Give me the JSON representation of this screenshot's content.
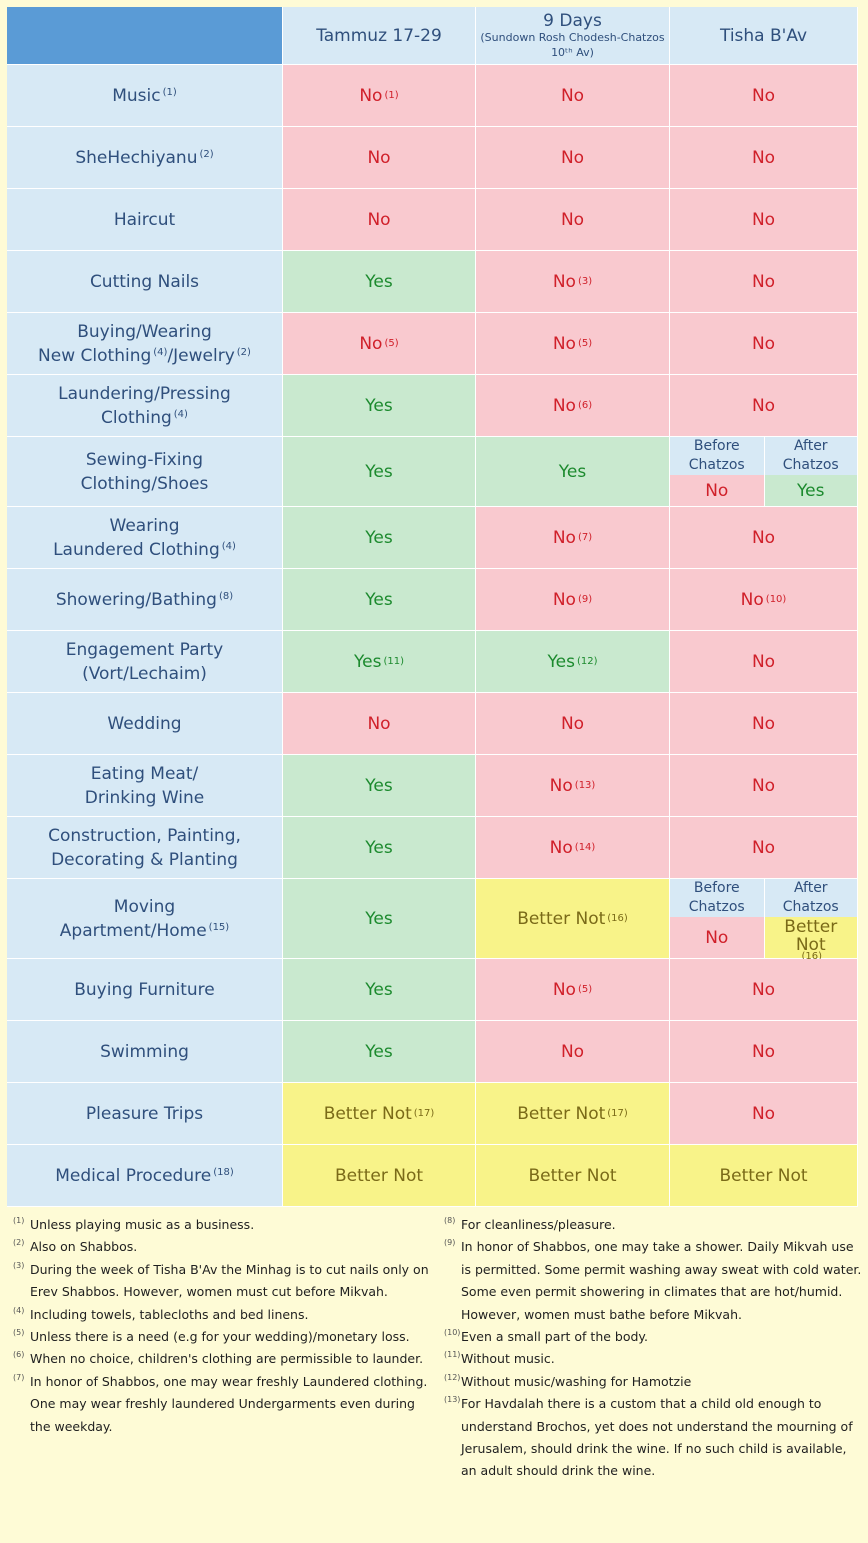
{
  "headers": [
    {
      "main": "Tammuz 17-29",
      "sub": ""
    },
    {
      "main": "9 Days",
      "sub": "(Sundown Rosh Chodesh-Chatzos 10ᵗʰ Av)"
    },
    {
      "main": "Tisha B'Av",
      "sub": ""
    }
  ],
  "rows": [
    {
      "label": "Music",
      "label_sup": "(1)",
      "cells": [
        {
          "text": "No",
          "sup": "(1)",
          "color": "red"
        },
        {
          "text": "No",
          "color": "red"
        },
        {
          "text": "No",
          "color": "red"
        }
      ]
    },
    {
      "label": "SheHechiyanu",
      "label_sup": "(2)",
      "cells": [
        {
          "text": "No",
          "color": "red"
        },
        {
          "text": "No",
          "color": "red"
        },
        {
          "text": "No",
          "color": "red"
        }
      ]
    },
    {
      "label": "Haircut",
      "cells": [
        {
          "text": "No",
          "color": "red"
        },
        {
          "text": "No",
          "color": "red"
        },
        {
          "text": "No",
          "color": "red"
        }
      ]
    },
    {
      "label": "Cutting Nails",
      "cells": [
        {
          "text": "Yes",
          "color": "green"
        },
        {
          "text": "No",
          "sup": "(3)",
          "color": "red"
        },
        {
          "text": "No",
          "color": "red"
        }
      ]
    },
    {
      "label": "Buying/Wearing",
      "label2": "New Clothing",
      "label2_sup": "(4)",
      "label2_tail": "/Jewelry",
      "label2_sup2": "(2)",
      "cells": [
        {
          "text": "No",
          "sup": "(5)",
          "color": "red"
        },
        {
          "text": "No",
          "sup": "(5)",
          "color": "red"
        },
        {
          "text": "No",
          "color": "red"
        }
      ]
    },
    {
      "label": "Laundering/Pressing",
      "label2": "Clothing",
      "label2_sup": "(4)",
      "cells": [
        {
          "text": "Yes",
          "color": "green"
        },
        {
          "text": "No",
          "sup": "(6)",
          "color": "red"
        },
        {
          "text": "No",
          "color": "red"
        }
      ]
    },
    {
      "label": "Sewing-Fixing",
      "label2": "Clothing/Shoes",
      "cells": [
        {
          "text": "Yes",
          "color": "green"
        },
        {
          "text": "Yes",
          "color": "green"
        },
        {
          "split": true,
          "before_label": "Before Chatzos",
          "after_label": "After Chatzos",
          "before": {
            "text": "No",
            "color": "red"
          },
          "after": {
            "text": "Yes",
            "color": "green"
          }
        }
      ]
    },
    {
      "label": "Wearing",
      "label2": "Laundered Clothing",
      "label2_sup": "(4)",
      "cells": [
        {
          "text": "Yes",
          "color": "green"
        },
        {
          "text": "No",
          "sup": "(7)",
          "color": "red"
        },
        {
          "text": "No",
          "color": "red"
        }
      ]
    },
    {
      "label": "Showering/Bathing",
      "label_sup": "(8)",
      "cells": [
        {
          "text": "Yes",
          "color": "green"
        },
        {
          "text": "No",
          "sup": "(9)",
          "color": "red"
        },
        {
          "text": "No",
          "sup": "(10)",
          "color": "red"
        }
      ]
    },
    {
      "label": "Engagement Party",
      "label2": "(Vort/Lechaim)",
      "cells": [
        {
          "text": "Yes",
          "sup": "(11)",
          "color": "green"
        },
        {
          "text": "Yes",
          "sup": "(12)",
          "color": "green"
        },
        {
          "text": "No",
          "color": "red"
        }
      ]
    },
    {
      "label": "Wedding",
      "cells": [
        {
          "text": "No",
          "color": "red"
        },
        {
          "text": "No",
          "color": "red"
        },
        {
          "text": "No",
          "color": "red"
        }
      ]
    },
    {
      "label": "Eating Meat/",
      "label2": "Drinking Wine",
      "cells": [
        {
          "text": "Yes",
          "color": "green"
        },
        {
          "text": "No",
          "sup": "(13)",
          "color": "red"
        },
        {
          "text": "No",
          "color": "red"
        }
      ]
    },
    {
      "label": "Construction, Painting,",
      "label2": "Decorating & Planting",
      "cells": [
        {
          "text": "Yes",
          "color": "green"
        },
        {
          "text": "No",
          "sup": "(14)",
          "color": "red"
        },
        {
          "text": "No",
          "color": "red"
        }
      ]
    },
    {
      "label": "Moving",
      "label2": "Apartment/Home",
      "label2_sup": "(15)",
      "cells": [
        {
          "text": "Yes",
          "color": "green"
        },
        {
          "text": "Better Not",
          "sup": "(16)",
          "color": "yellow"
        },
        {
          "split": true,
          "before_label": "Before Chatzos",
          "after_label": "After Chatzos",
          "before": {
            "text": "No",
            "color": "red"
          },
          "after": {
            "text": "Better Not",
            "sup": "(16)",
            "color": "yellow"
          }
        }
      ]
    },
    {
      "label": "Buying Furniture",
      "cells": [
        {
          "text": "Yes",
          "color": "green"
        },
        {
          "text": "No",
          "sup": "(5)",
          "color": "red"
        },
        {
          "text": "No",
          "color": "red"
        }
      ]
    },
    {
      "label": "Swimming",
      "cells": [
        {
          "text": "Yes",
          "color": "green"
        },
        {
          "text": "No",
          "color": "red"
        },
        {
          "text": "No",
          "color": "red"
        }
      ]
    },
    {
      "label": "Pleasure Trips",
      "cells": [
        {
          "text": "Better Not",
          "sup": "(17)",
          "color": "yellow"
        },
        {
          "text": "Better Not",
          "sup": "(17)",
          "color": "yellow"
        },
        {
          "text": "No",
          "color": "red"
        }
      ]
    },
    {
      "label": "Medical Procedure",
      "label_sup": "(18)",
      "cells": [
        {
          "text": "Better Not",
          "color": "yellow"
        },
        {
          "text": "Better Not",
          "color": "yellow"
        },
        {
          "text": "Better Not",
          "color": "yellow"
        }
      ]
    }
  ],
  "notes_left": [
    {
      "num": "(1)",
      "text": "Unless playing music as a business."
    },
    {
      "num": "(2)",
      "text": "Also on Shabbos."
    },
    {
      "num": "(3)",
      "text": "During the week of Tisha B'Av the Minhag is to cut nails only on Erev Shabbos. However, women must cut before Mikvah."
    },
    {
      "num": "(4)",
      "text": "Including towels, tablecloths and bed linens."
    },
    {
      "num": "(5)",
      "text": "Unless there is a need (e.g for your wedding)/monetary loss."
    },
    {
      "num": "(6)",
      "text": "When no choice, children's clothing are permissible to launder."
    },
    {
      "num": "(7)",
      "text": "In honor of Shabbos, one may wear freshly Laundered clothing. One may wear freshly laundered Undergarments even during the weekday."
    }
  ],
  "notes_right": [
    {
      "num": "(8)",
      "text": "For cleanliness/pleasure."
    },
    {
      "num": "(9)",
      "text": "In honor of Shabbos, one may take a shower. Daily Mikvah use is permitted. Some permit washing away sweat with cold water. Some even permit showering in climates that are hot/humid. However, women must bathe before Mikvah."
    },
    {
      "num": "(10)",
      "text": "Even a small part of the body."
    },
    {
      "num": "(11)",
      "text": "Without music."
    },
    {
      "num": "(12)",
      "text": "Without music/washing for Hamotzie"
    },
    {
      "num": "(13)",
      "text": "For Havdalah there is a custom that a child old enough to understand Brochos, yet does not understand the mourning of Jerusalem, should drink the wine. If no such child is available, an adult should drink the wine."
    }
  ],
  "colors": {
    "no": "#f9c9cf",
    "yes": "#c9e9cf",
    "better_not": "#f8f389",
    "label_bg": "#d7e9f5",
    "header_accent": "#5a9bd6"
  }
}
